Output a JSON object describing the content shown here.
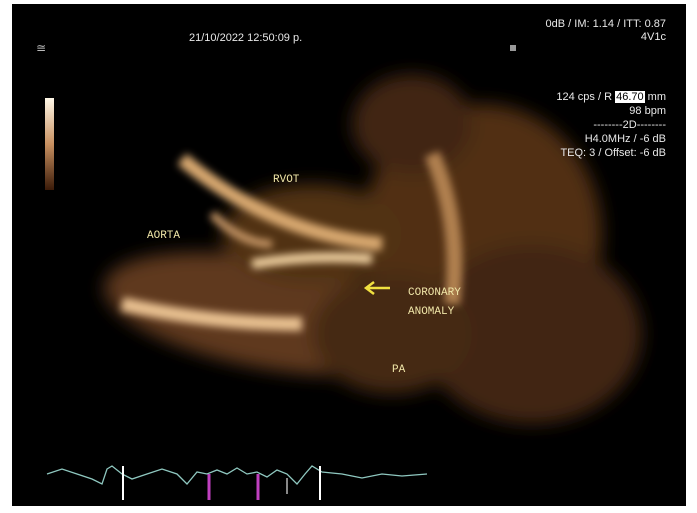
{
  "header": {
    "datetime": "21/10/2022 12:50:09 p.",
    "output": "0dB / IM: 1.14 / ITT: 0.87",
    "probe": "4V1c"
  },
  "parameters": {
    "rate": "124 cps / R",
    "depth": "46.70",
    "depth_unit": "mm",
    "heart_rate": "98 bpm",
    "mode": "--------2D--------",
    "frequency": "H4.0MHz / -6 dB",
    "teq": "TEQ: 3 / Offset: -6 dB"
  },
  "labels": {
    "rvot": "RVOT",
    "aorta": "AORTA",
    "coronary": "CORONARY",
    "anomaly": "ANOMALY",
    "pa": "PA"
  }
}
